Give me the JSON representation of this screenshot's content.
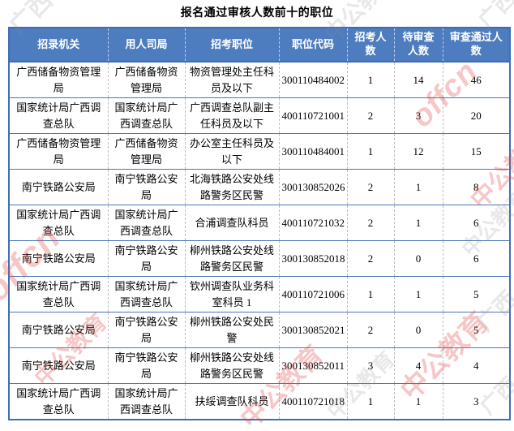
{
  "title": "报名通过审核人数前十的职位",
  "chart_data": {
    "type": "table",
    "title": "报名通过审核人数前十的职位",
    "columns": [
      "招录机关",
      "用人司局",
      "招考职位",
      "职位代码",
      "招考人数",
      "待审查人数",
      "审查通过人数"
    ],
    "rows": [
      [
        "广西储备物资管理局",
        "广西储备物资管理局",
        "物资管理处主任科员及以下",
        "300110484002",
        "1",
        "14",
        "46"
      ],
      [
        "国家统计局广西调查总队",
        "国家统计局广西调查总队",
        "广西调查总队副主任科员及以下",
        "400110721001",
        "2",
        "3",
        "20"
      ],
      [
        "广西储备物资管理局",
        "广西储备物资管理局",
        "办公室主任科员及以下",
        "300110484001",
        "1",
        "12",
        "15"
      ],
      [
        "南宁铁路公安局",
        "南宁铁路公安局",
        "北海铁路公安处线路警务区民警",
        "300130852026",
        "2",
        "1",
        "8"
      ],
      [
        "国家统计局广西调查总队",
        "国家统计局广西调查总队",
        "合浦调查队科员",
        "400110721032",
        "2",
        "1",
        "6"
      ],
      [
        "南宁铁路公安局",
        "南宁铁路公安局",
        "柳州铁路公安处线路警务区民警",
        "300130852018",
        "2",
        "0",
        "6"
      ],
      [
        "国家统计局广西调查总队",
        "国家统计局广西调查总队",
        "钦州调查队业务科室科员 1",
        "400110721006",
        "1",
        "1",
        "5"
      ],
      [
        "南宁铁路公安局",
        "南宁铁路公安局",
        "柳州铁路公安处民警",
        "300130852021",
        "2",
        "0",
        "5"
      ],
      [
        "南宁铁路公安局",
        "南宁铁路公安局",
        "柳州铁路公安处线路警务区民警",
        "300130852011",
        "3",
        "4",
        "4"
      ],
      [
        "国家统计局广西调查总队",
        "国家统计局广西调查总队",
        "扶绥调查队科员",
        "400110721018",
        "1",
        "1",
        "3"
      ]
    ]
  },
  "watermarks": {
    "latin": "offcn",
    "cjk": "中公教育",
    "region": "广西"
  },
  "colors": {
    "header_bg": "#4D7CBF",
    "table_border": "#3F6DB5",
    "row_line": "#4A76B8",
    "watermark_red": "#E24545",
    "watermark_gray": "#8C8C8C"
  }
}
